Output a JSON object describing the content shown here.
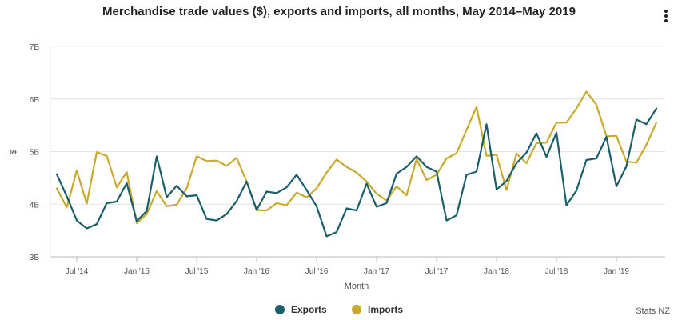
{
  "chart_data": {
    "type": "line",
    "title": "Merchandise trade values ($), exports and imports, all months, May 2014–May 2019",
    "xlabel": "Month",
    "ylabel": "$",
    "ylim": [
      3,
      7
    ],
    "y_unit_suffix": "B",
    "y_ticks": [
      3,
      4,
      5,
      6,
      7
    ],
    "y_tick_labels": [
      "3B",
      "4B",
      "5B",
      "6B",
      "7B"
    ],
    "x_tick_indices": [
      2,
      8,
      14,
      20,
      26,
      32,
      38,
      44,
      50,
      56
    ],
    "x_tick_labels": [
      "Jul '14",
      "Jan '15",
      "Jul '15",
      "Jan '16",
      "Jul '16",
      "Jan '17",
      "Jul '17",
      "Jan '18",
      "Jul '18",
      "Jan '19"
    ],
    "x": [
      "May 2014",
      "Jun 2014",
      "Jul 2014",
      "Aug 2014",
      "Sep 2014",
      "Oct 2014",
      "Nov 2014",
      "Dec 2014",
      "Jan 2015",
      "Feb 2015",
      "Mar 2015",
      "Apr 2015",
      "May 2015",
      "Jun 2015",
      "Jul 2015",
      "Aug 2015",
      "Sep 2015",
      "Oct 2015",
      "Nov 2015",
      "Dec 2015",
      "Jan 2016",
      "Feb 2016",
      "Mar 2016",
      "Apr 2016",
      "May 2016",
      "Jun 2016",
      "Jul 2016",
      "Aug 2016",
      "Sep 2016",
      "Oct 2016",
      "Nov 2016",
      "Dec 2016",
      "Jan 2017",
      "Feb 2017",
      "Mar 2017",
      "Apr 2017",
      "May 2017",
      "Jun 2017",
      "Jul 2017",
      "Aug 2017",
      "Sep 2017",
      "Oct 2017",
      "Nov 2017",
      "Dec 2017",
      "Jan 2018",
      "Feb 2018",
      "Mar 2018",
      "Apr 2018",
      "May 2018",
      "Jun 2018",
      "Jul 2018",
      "Aug 2018",
      "Sep 2018",
      "Oct 2018",
      "Nov 2018",
      "Dec 2018",
      "Jan 2019",
      "Feb 2019",
      "Mar 2019",
      "Apr 2019",
      "May 2019"
    ],
    "series": [
      {
        "name": "Exports",
        "color": "#1a5e6a",
        "values": [
          4.57,
          4.15,
          3.69,
          3.54,
          3.62,
          4.02,
          4.05,
          4.4,
          3.68,
          3.87,
          4.91,
          4.13,
          4.35,
          4.15,
          4.17,
          3.72,
          3.69,
          3.81,
          4.06,
          4.43,
          3.89,
          4.24,
          4.21,
          4.32,
          4.56,
          4.27,
          3.96,
          3.39,
          3.47,
          3.92,
          3.88,
          4.39,
          3.95,
          4.02,
          4.58,
          4.71,
          4.91,
          4.71,
          4.62,
          3.69,
          3.79,
          4.56,
          4.62,
          5.52,
          4.28,
          4.44,
          4.78,
          4.98,
          5.35,
          4.9,
          5.36,
          3.98,
          4.26,
          4.84,
          4.87,
          5.28,
          4.34,
          4.72,
          5.61,
          5.52,
          5.82
        ]
      },
      {
        "name": "Imports",
        "color": "#c9a92c",
        "values": [
          4.3,
          3.94,
          4.64,
          4.01,
          4.99,
          4.92,
          4.32,
          4.61,
          3.64,
          3.81,
          4.25,
          3.96,
          3.99,
          4.3,
          4.91,
          4.82,
          4.83,
          4.73,
          4.88,
          4.43,
          3.89,
          3.88,
          4.02,
          3.98,
          4.22,
          4.13,
          4.3,
          4.6,
          4.85,
          4.71,
          4.6,
          4.43,
          4.2,
          4.07,
          4.34,
          4.17,
          4.86,
          4.46,
          4.56,
          4.87,
          4.97,
          5.41,
          5.85,
          4.92,
          4.94,
          4.27,
          4.96,
          4.78,
          5.16,
          5.17,
          5.55,
          5.55,
          5.82,
          6.14,
          5.89,
          5.29,
          5.3,
          4.81,
          4.79,
          5.13,
          5.55
        ]
      }
    ],
    "legend_position": "bottom-center",
    "grid": true
  },
  "legend": {
    "exports_label": "Exports",
    "imports_label": "Imports",
    "exports_color": "#1a5e6a",
    "imports_color": "#c9a92c"
  },
  "credit": "Stats NZ",
  "menu_icon": "more-vertical-icon"
}
